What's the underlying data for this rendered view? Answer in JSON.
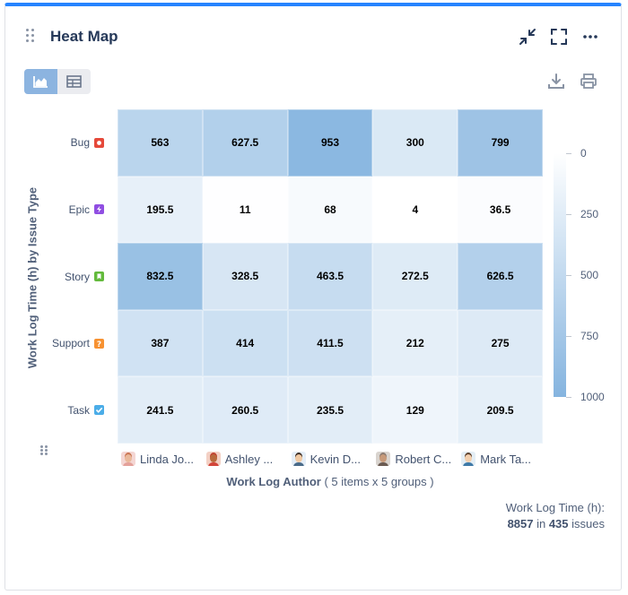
{
  "header": {
    "title": "Heat Map"
  },
  "icons": {
    "collapse": "collapse-icon",
    "fullscreen": "fullscreen-icon",
    "more": "more-icon",
    "chart_view": "area-chart-icon",
    "table_view": "table-icon",
    "download": "download-icon",
    "print": "print-icon",
    "drag": "drag-handle-icon"
  },
  "chart_data": {
    "type": "heatmap",
    "ylabel": "Work Log Time (h) by Issue Type",
    "xlabel": "Work Log Author",
    "xlabel_suffix": " ( 5 items x 5 groups )",
    "rows": [
      {
        "label": "Bug",
        "icon": "bug-icon",
        "color": "#e5493a"
      },
      {
        "label": "Epic",
        "icon": "epic-icon",
        "color": "#904ee2"
      },
      {
        "label": "Story",
        "icon": "story-icon",
        "color": "#63ba3c"
      },
      {
        "label": "Support",
        "icon": "support-icon",
        "color": "#f79232"
      },
      {
        "label": "Task",
        "icon": "task-icon",
        "color": "#4bade8"
      }
    ],
    "columns": [
      "Linda Jo...",
      "Ashley ...",
      "Kevin D...",
      "Robert C...",
      "Mark Ta..."
    ],
    "values": [
      [
        563,
        627.5,
        953,
        300,
        799
      ],
      [
        195.5,
        11,
        68,
        4,
        36.5
      ],
      [
        832.5,
        328.5,
        463.5,
        272.5,
        626.5
      ],
      [
        387,
        414,
        411.5,
        212,
        275
      ],
      [
        241.5,
        260.5,
        235.5,
        129,
        209.5
      ]
    ],
    "scale": {
      "min": 0,
      "max": 1000,
      "ticks": [
        0,
        250,
        500,
        750,
        1000
      ],
      "min_color": "#ffffff",
      "max_color": "#85b4df"
    },
    "legend": "right"
  },
  "footer": {
    "label": "Work Log Time (h):",
    "total": "8857",
    "in_text": " in ",
    "count": "435",
    "unit": " issues"
  }
}
